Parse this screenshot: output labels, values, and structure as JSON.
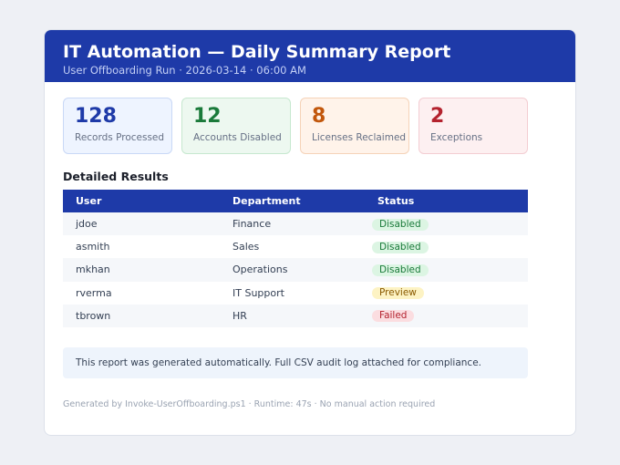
{
  "header": {
    "title": "IT Automation — Daily Summary Report",
    "subtitle": "User Offboarding Run · 2026-03-14 · 06:00 AM"
  },
  "stats": [
    {
      "value": "128",
      "label": "Records Processed",
      "color": "#1e3aa8"
    },
    {
      "value": "12",
      "label": "Accounts Disabled",
      "color": "#1a7a3a"
    },
    {
      "value": "8",
      "label": "Licenses Reclaimed",
      "color": "#c2570c"
    },
    {
      "value": "2",
      "label": "Exceptions",
      "color": "#b4232f"
    }
  ],
  "results": {
    "title": "Detailed Results",
    "columns": [
      "User",
      "Department",
      "Status"
    ],
    "rows": [
      {
        "user": "jdoe",
        "department": "Finance",
        "status": "Disabled"
      },
      {
        "user": "asmith",
        "department": "Sales",
        "status": "Disabled"
      },
      {
        "user": "mkhan",
        "department": "Operations",
        "status": "Disabled"
      },
      {
        "user": "rverma",
        "department": "IT Support",
        "status": "Preview"
      },
      {
        "user": "tbrown",
        "department": "HR",
        "status": "Failed"
      }
    ]
  },
  "note": "This report was generated automatically. Full CSV audit log attached for compliance.",
  "footer": "Generated by Invoke-UserOffboarding.ps1 · Runtime: 47s · No manual action required",
  "colors": {
    "accent": "#1e3aa8",
    "status_disabled": "#1a7a3a",
    "status_preview": "#8a5a00",
    "status_failed": "#b4232f"
  }
}
